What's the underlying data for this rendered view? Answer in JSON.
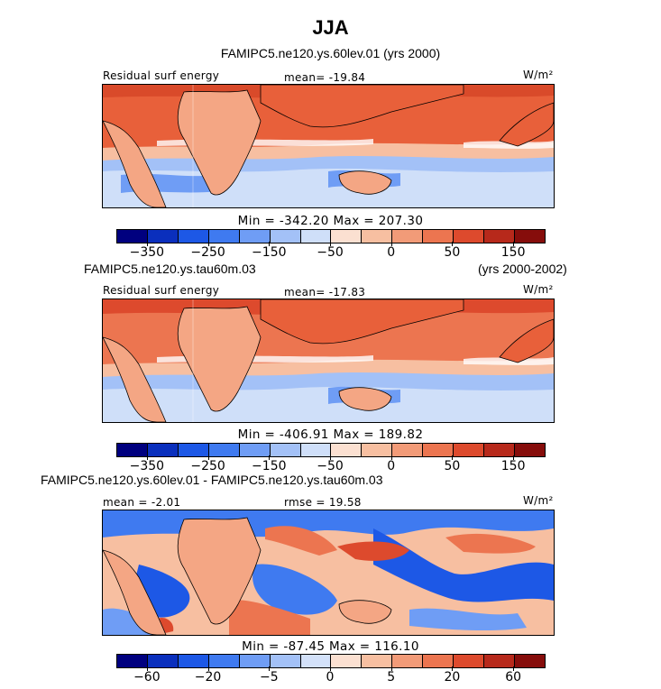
{
  "title": "JJA",
  "panels": [
    {
      "subtitle_center": "FAMIPC5.ne120.ys.60lev.01 (yrs 2000)",
      "label_left": "Residual surf energy",
      "label_mid": "mean= -19.84",
      "label_right": "W/m²",
      "colorbar_minmax": "Min = -342.20 Max = 207.30",
      "colorbar_ticks": [
        "-350",
        "-250",
        "-150",
        "-50",
        "0",
        "50",
        "150"
      ]
    },
    {
      "subtitle_left": "FAMIPC5.ne120.ys.tau60m.03",
      "subtitle_right": "(yrs 2000-2002)",
      "label_left": "Residual surf energy",
      "label_mid": "mean= -17.83",
      "label_right": "W/m²",
      "colorbar_minmax": "Min = -406.91 Max = 189.82",
      "colorbar_ticks": [
        "-350",
        "-250",
        "-150",
        "-50",
        "0",
        "50",
        "150"
      ]
    },
    {
      "subtitle_left": "FAMIPC5.ne120.ys.60lev.01 - FAMIPC5.ne120.ys.tau60m.03",
      "label_left": "mean = -2.01",
      "label_mid": "rmse = 19.58",
      "label_right": "W/m²",
      "colorbar_minmax": "Min = -87.45 Max = 116.10",
      "colorbar_ticks": [
        "-60",
        "-20",
        "-5",
        "0",
        "5",
        "20",
        "60"
      ]
    }
  ],
  "colors": {
    "bar_main": [
      "#00007f",
      "#0a2fbd",
      "#1d58e6",
      "#3f7af0",
      "#6f9df5",
      "#a3c1f7",
      "#cfdff9",
      "#fbe0d1",
      "#f7bfa1",
      "#f29b78",
      "#ec7550",
      "#dd4a2d",
      "#b7291b",
      "#860d0b"
    ],
    "bar_diff": [
      "#00007f",
      "#0a2fbd",
      "#1d58e6",
      "#3f7af0",
      "#6f9df5",
      "#a3c1f7",
      "#d3e1f9",
      "#fbe0d1",
      "#f7bfa1",
      "#f29b78",
      "#ec7550",
      "#dd4a2d",
      "#b7291b",
      "#860d0b"
    ],
    "land": "#f4a684",
    "ocean_north": "#e8603a",
    "ocean_south_cool": "#9bb8f2",
    "ocean_south_blue": "#5b89ea"
  },
  "chart_data": [
    {
      "type": "heatmap",
      "title": "FAMIPC5.ne120.ys.60lev.01 (yrs 2000)",
      "variable": "Residual surf energy",
      "units": "W/m²",
      "mean": -19.84,
      "min": -342.2,
      "max": 207.3,
      "colorbar_ticks": [
        -350,
        -250,
        -150,
        -50,
        0,
        50,
        150
      ]
    },
    {
      "type": "heatmap",
      "title": "FAMIPC5.ne120.ys.tau60m.03",
      "variable": "Residual surf energy",
      "units": "W/m²",
      "mean": -17.83,
      "min": -406.91,
      "max": 189.82,
      "colorbar_ticks": [
        -350,
        -250,
        -150,
        -50,
        0,
        50,
        150
      ]
    },
    {
      "type": "heatmap",
      "title": "FAMIPC5.ne120.ys.60lev.01 - FAMIPC5.ne120.ys.tau60m.03",
      "units": "W/m²",
      "mean": -2.01,
      "rmse": 19.58,
      "min": -87.45,
      "max": 116.1,
      "colorbar_ticks": [
        -60,
        -20,
        -5,
        0,
        5,
        20,
        60
      ]
    }
  ]
}
